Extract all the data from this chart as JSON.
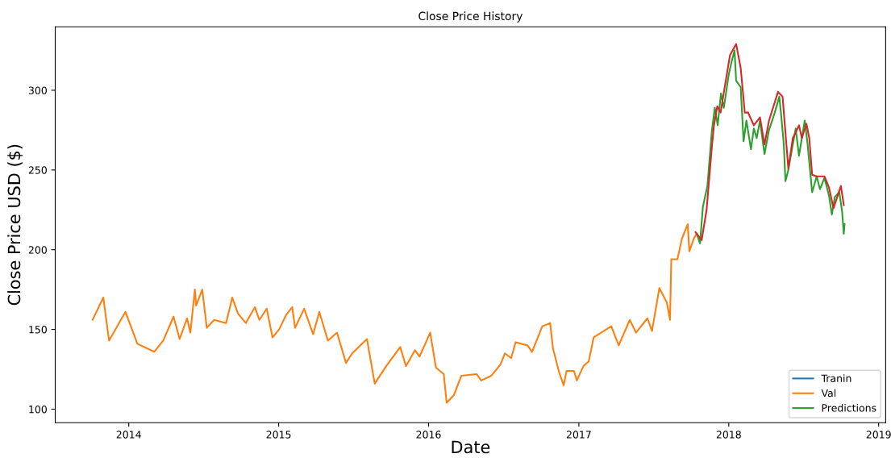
{
  "chart_data": {
    "type": "line",
    "title": "Close Price History",
    "xlabel": "Date",
    "ylabel": "Close Price USD ($)",
    "xlim": [
      "2013-07-06",
      "2019-01-18"
    ],
    "xticks": [
      {
        "value": "2014-01-01",
        "label": "2014"
      },
      {
        "value": "2015-01-01",
        "label": "2015"
      },
      {
        "value": "2016-01-01",
        "label": "2016"
      },
      {
        "value": "2017-01-01",
        "label": "2017"
      },
      {
        "value": "2018-01-01",
        "label": "2018"
      },
      {
        "value": "2019-01-01",
        "label": "2019"
      }
    ],
    "ylim": [
      91.5,
      339.8
    ],
    "yticks": [
      100,
      150,
      200,
      250,
      300
    ],
    "grid": false,
    "legend": "bottom right",
    "marker": "none",
    "line_style": "solid",
    "series": [
      {
        "name": "Tranin",
        "color": "#1f77b4"
      },
      {
        "name": "Val",
        "color": "#ff7f0e",
        "x": [
          "2013-10-05",
          "2013-10-31",
          "2013-11-14",
          "2013-12-24",
          "2014-01-22",
          "2014-03-04",
          "2014-03-26",
          "2014-04-20",
          "2014-05-05",
          "2014-05-23",
          "2014-05-31",
          "2014-06-11",
          "2014-06-14",
          "2014-06-29",
          "2014-07-10",
          "2014-07-28",
          "2014-08-26",
          "2014-09-10",
          "2014-09-24",
          "2014-10-13",
          "2014-11-04",
          "2014-11-15",
          "2014-12-03",
          "2014-12-17",
          "2015-01-02",
          "2015-01-19",
          "2015-02-03",
          "2015-02-10",
          "2015-03-04",
          "2015-03-26",
          "2015-04-10",
          "2015-05-01",
          "2015-05-23",
          "2015-06-14",
          "2015-06-29",
          "2015-08-04",
          "2015-08-23",
          "2015-09-17",
          "2015-10-24",
          "2015-11-07",
          "2015-11-29",
          "2015-12-10",
          "2016-01-05",
          "2016-01-19",
          "2016-02-07",
          "2016-02-14",
          "2016-03-03",
          "2016-03-21",
          "2016-04-27",
          "2016-05-08",
          "2016-06-02",
          "2016-06-24",
          "2016-07-05",
          "2016-07-20",
          "2016-07-31",
          "2016-08-29",
          "2016-09-09",
          "2016-10-04",
          "2016-10-23",
          "2016-10-30",
          "2016-11-14",
          "2016-11-25",
          "2016-12-02",
          "2016-12-20",
          "2016-12-27",
          "2017-01-12",
          "2017-01-25",
          "2017-02-06",
          "2017-03-21",
          "2017-04-08",
          "2017-05-05",
          "2017-05-20",
          "2017-06-17",
          "2017-06-28",
          "2017-07-16",
          "2017-08-03",
          "2017-08-11",
          "2017-08-14",
          "2017-08-29",
          "2017-09-09",
          "2017-09-23",
          "2017-09-27",
          "2017-10-08",
          "2017-10-15"
        ],
        "values": [
          156,
          170,
          143,
          161,
          141,
          136,
          143,
          158,
          144,
          157,
          148,
          175,
          165,
          175,
          151,
          156,
          154,
          170,
          160,
          154,
          164,
          156,
          163,
          145,
          150,
          159,
          164,
          151,
          163,
          147,
          161,
          143,
          148,
          129,
          135,
          144,
          116,
          126,
          139,
          127,
          137,
          133,
          148,
          126,
          122,
          104,
          109,
          121,
          122,
          118,
          121,
          128,
          135,
          132,
          142,
          140,
          136,
          152,
          154,
          138,
          123,
          115,
          124,
          124,
          118,
          127,
          130,
          145,
          152,
          140,
          156,
          148,
          157,
          149,
          176,
          167,
          156,
          194,
          194,
          207,
          216,
          199,
          207,
          210
        ]
      },
      {
        "name": "Predictions",
        "color": "#2ca02c",
        "x": [
          "2017-10-15",
          "2017-10-23",
          "2017-10-30",
          "2017-11-10",
          "2017-11-21",
          "2017-11-28",
          "2017-12-05",
          "2017-12-13",
          "2017-12-20",
          "2018-01-01",
          "2018-01-08",
          "2018-01-15",
          "2018-01-19",
          "2018-01-30",
          "2018-02-06",
          "2018-02-13",
          "2018-02-24",
          "2018-03-03",
          "2018-03-10",
          "2018-03-18",
          "2018-03-29",
          "2018-04-09",
          "2018-04-23",
          "2018-05-04",
          "2018-05-08",
          "2018-05-15",
          "2018-05-19",
          "2018-05-26",
          "2018-06-06",
          "2018-06-13",
          "2018-06-21",
          "2018-06-28",
          "2018-07-05",
          "2018-07-12",
          "2018-07-20",
          "2018-07-23",
          "2018-08-03",
          "2018-08-11",
          "2018-08-22",
          "2018-09-02",
          "2018-09-09",
          "2018-09-16",
          "2018-09-27",
          "2018-10-04",
          "2018-10-08",
          "2018-10-10"
        ],
        "values": [
          210,
          204,
          227,
          240,
          275,
          289,
          278,
          298,
          289,
          310,
          318,
          325,
          306,
          302,
          268,
          281,
          263,
          276,
          270,
          281,
          260,
          275,
          286,
          296,
          286,
          266,
          243,
          250,
          266,
          276,
          259,
          270,
          281,
          266,
          244,
          236,
          246,
          238,
          245,
          234,
          222,
          233,
          236,
          224,
          210,
          216
        ]
      },
      {
        "color": "#d62728",
        "x": [
          "2017-10-12",
          "2017-10-27",
          "2017-11-08",
          "2017-11-21",
          "2017-11-26",
          "2017-12-04",
          "2017-12-12",
          "2017-12-24",
          "2018-01-04",
          "2018-01-19",
          "2018-01-30",
          "2018-02-09",
          "2018-02-17",
          "2018-03-03",
          "2018-03-18",
          "2018-03-29",
          "2018-04-09",
          "2018-05-01",
          "2018-05-12",
          "2018-05-26",
          "2018-06-06",
          "2018-06-21",
          "2018-06-28",
          "2018-07-09",
          "2018-07-16",
          "2018-07-23",
          "2018-08-03",
          "2018-08-22",
          "2018-09-02",
          "2018-09-13",
          "2018-10-01",
          "2018-10-08"
        ],
        "values": [
          211,
          206,
          225,
          265,
          278,
          290,
          286,
          305,
          322,
          329,
          314,
          286,
          286,
          278,
          283,
          266,
          281,
          299,
          296,
          251,
          270,
          278,
          270,
          279,
          270,
          247,
          246,
          246,
          239,
          226,
          240,
          228
        ]
      }
    ]
  }
}
